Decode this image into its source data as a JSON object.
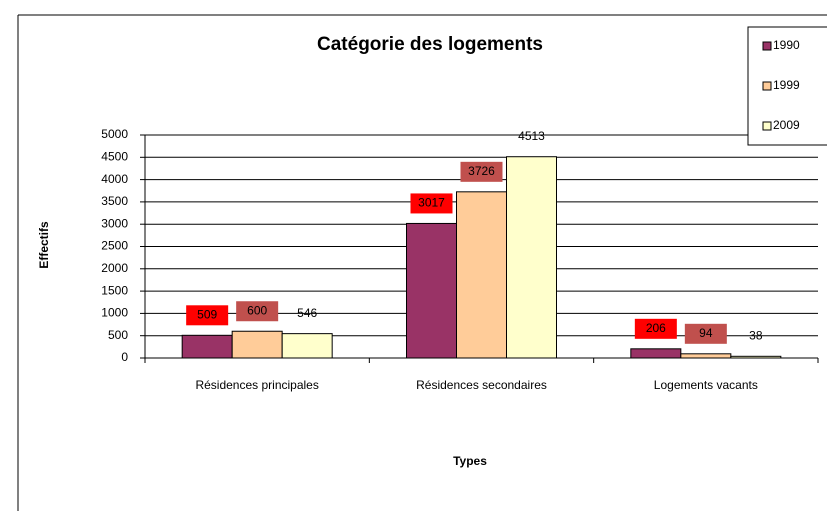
{
  "chart_data": {
    "type": "bar",
    "title": "Catégorie des logements",
    "xlabel": "Types",
    "ylabel": "Effectifs",
    "categories": [
      "Résidences principales",
      "Résidences secondaires",
      "Logements vacants"
    ],
    "series": [
      {
        "name": "1990",
        "color": "#993366",
        "label_background": "#ff0000",
        "values": [
          509,
          3017,
          206
        ]
      },
      {
        "name": "1999",
        "color": "#ffcc99",
        "label_background": "#c0504d",
        "values": [
          600,
          3726,
          94
        ]
      },
      {
        "name": "2009",
        "color": "#ffffcc",
        "values": [
          546,
          4513,
          38
        ]
      }
    ],
    "ylim": [
      0,
      5000
    ],
    "yticks": [
      0,
      500,
      1000,
      1500,
      2000,
      2500,
      3000,
      3500,
      4000,
      4500,
      5000
    ],
    "grid": true,
    "legend": "upper right"
  }
}
